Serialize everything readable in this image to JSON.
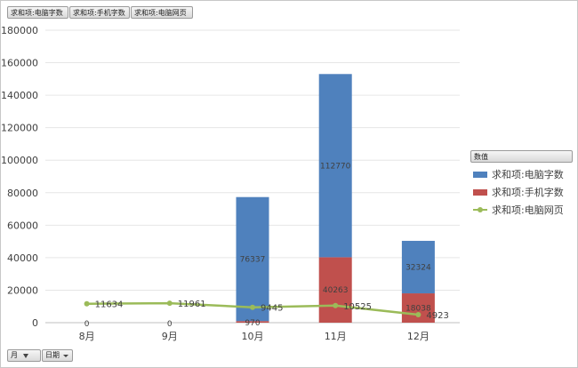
{
  "field_buttons": [
    "求和项:电脑字数",
    "求和项:手机字数",
    "求和项:电脑网页"
  ],
  "row_filters": [
    {
      "label": "月",
      "icon": "filter-icon"
    },
    {
      "label": "日期",
      "icon": "chevron-down-icon"
    }
  ],
  "legend": {
    "title": "数值",
    "items": [
      {
        "label": "求和项:电脑字数",
        "color": "#4f81bd",
        "kind": "box"
      },
      {
        "label": "求和项:手机字数",
        "color": "#c0504d",
        "kind": "box"
      },
      {
        "label": "求和项:电脑网页",
        "color": "#9bbb59",
        "kind": "line"
      }
    ]
  },
  "chart_data": {
    "type": "bar",
    "stacked": true,
    "categories": [
      "8月",
      "9月",
      "10月",
      "11月",
      "12月"
    ],
    "series": [
      {
        "name": "求和项:手机字数",
        "kind": "bar",
        "color": "#c0504d",
        "values": [
          0,
          0,
          970,
          40263,
          18038
        ]
      },
      {
        "name": "求和项:电脑字数",
        "kind": "bar",
        "color": "#4f81bd",
        "values": [
          0,
          0,
          76337,
          112770,
          32324
        ]
      },
      {
        "name": "求和项:电脑网页",
        "kind": "line",
        "color": "#9bbb59",
        "values": [
          11634,
          11961,
          9445,
          10525,
          4923
        ]
      }
    ],
    "data_labels": {
      "bar_total_zero": [
        "0",
        "0"
      ],
      "phone": [
        "970",
        "40263",
        "18038"
      ],
      "pc": [
        "76337",
        "112770",
        "32324"
      ],
      "line": [
        "11634",
        "11961",
        "9445",
        "10525",
        "4923"
      ]
    },
    "ylim": [
      0,
      180000
    ],
    "yticks": [
      "0",
      "20000",
      "40000",
      "60000",
      "80000",
      "100000",
      "120000",
      "140000",
      "160000",
      "180000"
    ],
    "grid": true,
    "legend_position": "right"
  }
}
